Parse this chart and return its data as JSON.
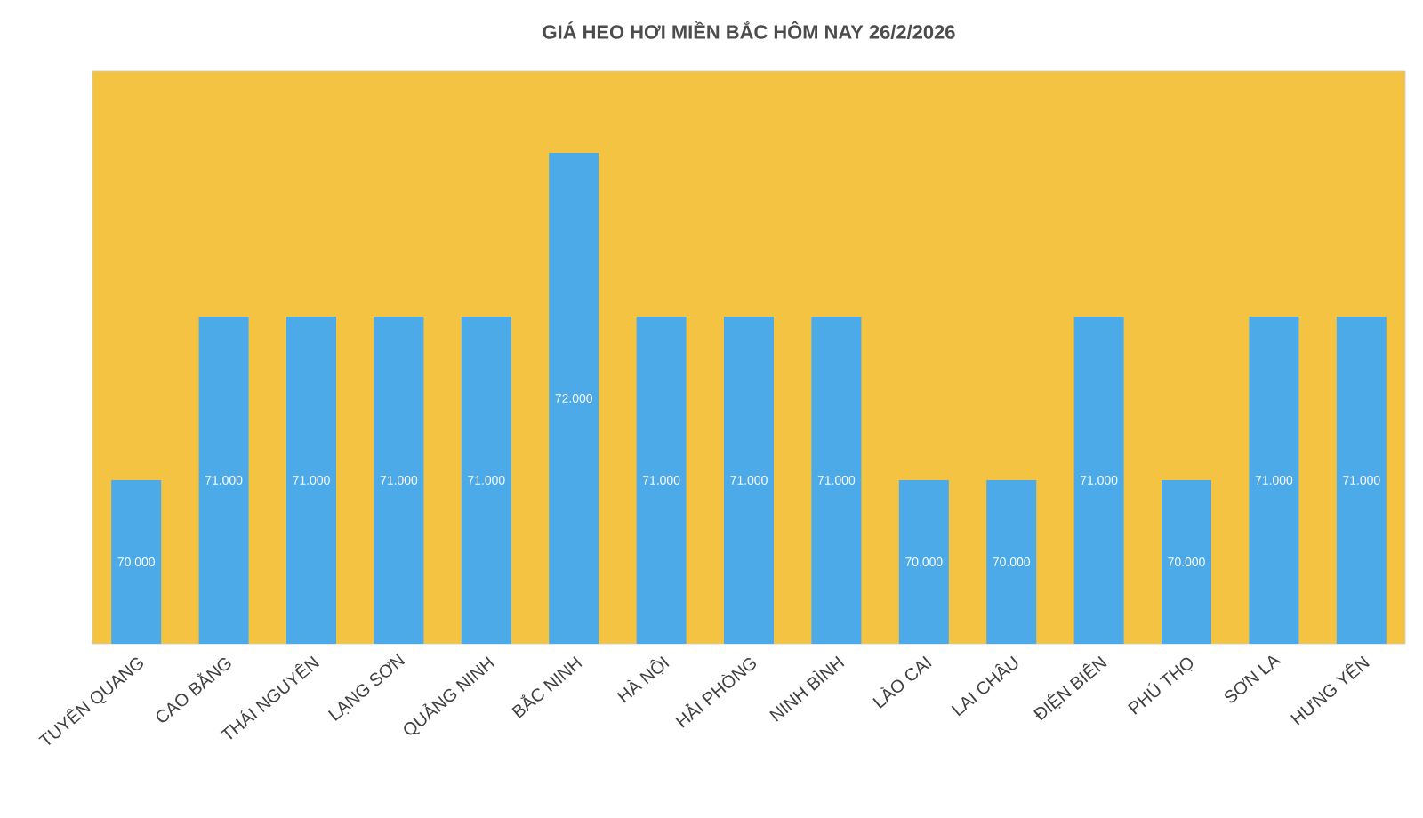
{
  "chart_data": {
    "type": "bar",
    "title": "GIÁ HEO HƠI MIỀN BẮC HÔM NAY 26/2/2026",
    "categories": [
      "TUYÊN QUANG",
      "CAO BẰNG",
      "THÁI NGUYÊN",
      "LẠNG SƠN",
      "QUẢNG NINH",
      "BẮC NINH",
      "HÀ NỘI",
      "HẢI PHÒNG",
      "NINH BÌNH",
      "LÀO CAI",
      "LAI CHÂU",
      "ĐIỆN BIÊN",
      "PHÚ THỌ",
      "SƠN LA",
      "HƯNG YÊN"
    ],
    "values": [
      70000,
      71000,
      71000,
      71000,
      71000,
      72000,
      71000,
      71000,
      71000,
      70000,
      70000,
      71000,
      70000,
      71000,
      71000
    ],
    "value_labels": [
      "70.000",
      "71.000",
      "71.000",
      "71.000",
      "71.000",
      "72.000",
      "71.000",
      "71.000",
      "71.000",
      "70.000",
      "70.000",
      "71.000",
      "70.000",
      "71.000",
      "71.000"
    ],
    "color": "#4daae8",
    "ylim": [
      69000,
      72500
    ],
    "tick_labels": "x"
  }
}
